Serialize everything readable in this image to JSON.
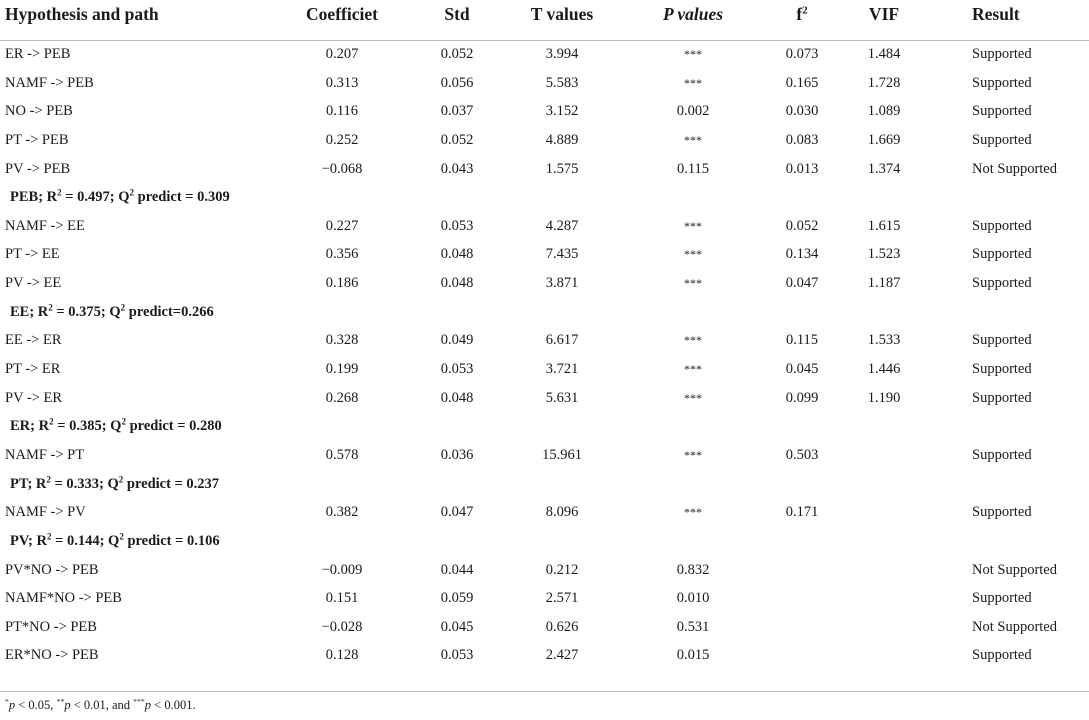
{
  "header": {
    "path": "Hypothesis and path",
    "coef": "Coefficiet",
    "std": "Std",
    "t": "T values",
    "p": "P values",
    "f2_base": "f",
    "f2_sup": "2",
    "vif": "VIF",
    "result": "Result"
  },
  "rows": [
    {
      "type": "data",
      "path": "ER -> PEB",
      "coef": "0.207",
      "std": "0.052",
      "t": "3.994",
      "p": "***",
      "f2": "0.073",
      "vif": "1.484",
      "result": "Supported"
    },
    {
      "type": "data",
      "path": "NAMF -> PEB",
      "coef": "0.313",
      "std": "0.056",
      "t": "5.583",
      "p": "***",
      "f2": "0.165",
      "vif": "1.728",
      "result": "Supported"
    },
    {
      "type": "data",
      "path": "NO -> PEB",
      "coef": "0.116",
      "std": "0.037",
      "t": "3.152",
      "p": "0.002",
      "f2": "0.030",
      "vif": "1.089",
      "result": "Supported"
    },
    {
      "type": "data",
      "path": "PT -> PEB",
      "coef": "0.252",
      "std": "0.052",
      "t": "4.889",
      "p": "***",
      "f2": "0.083",
      "vif": "1.669",
      "result": "Supported"
    },
    {
      "type": "data",
      "path": "PV -> PEB",
      "coef": "−0.068",
      "std": "0.043",
      "t": "1.575",
      "p": "0.115",
      "f2": "0.013",
      "vif": "1.374",
      "result": "Not Supported"
    },
    {
      "type": "section",
      "a": "PEB; R",
      "b": " = 0.497; Q",
      "c": " predict = 0.309"
    },
    {
      "type": "data",
      "path": "NAMF -> EE",
      "coef": "0.227",
      "std": "0.053",
      "t": "4.287",
      "p": "***",
      "f2": "0.052",
      "vif": "1.615",
      "result": "Supported"
    },
    {
      "type": "data",
      "path": "PT -> EE",
      "coef": "0.356",
      "std": "0.048",
      "t": "7.435",
      "p": "***",
      "f2": "0.134",
      "vif": "1.523",
      "result": "Supported"
    },
    {
      "type": "data",
      "path": "PV -> EE",
      "coef": "0.186",
      "std": "0.048",
      "t": "3.871",
      "p": "***",
      "f2": "0.047",
      "vif": "1.187",
      "result": "Supported"
    },
    {
      "type": "section",
      "a": "EE; R",
      "b": " = 0.375; Q",
      "c": " predict=0.266"
    },
    {
      "type": "data",
      "path": "EE -> ER",
      "coef": "0.328",
      "std": "0.049",
      "t": "6.617",
      "p": "***",
      "f2": "0.115",
      "vif": "1.533",
      "result": "Supported"
    },
    {
      "type": "data",
      "path": "PT -> ER",
      "coef": "0.199",
      "std": "0.053",
      "t": "3.721",
      "p": "***",
      "f2": "0.045",
      "vif": "1.446",
      "result": "Supported"
    },
    {
      "type": "data",
      "path": "PV -> ER",
      "coef": "0.268",
      "std": "0.048",
      "t": "5.631",
      "p": "***",
      "f2": "0.099",
      "vif": "1.190",
      "result": "Supported"
    },
    {
      "type": "section",
      "a": "ER; R",
      "b": " = 0.385; Q",
      "c": " predict = 0.280"
    },
    {
      "type": "data",
      "path": "NAMF -> PT",
      "coef": "0.578",
      "std": "0.036",
      "t": "15.961",
      "p": "***",
      "f2": "0.503",
      "vif": "",
      "result": "Supported"
    },
    {
      "type": "section",
      "a": "PT; R",
      "b": " = 0.333; Q",
      "c": " predict = 0.237"
    },
    {
      "type": "data",
      "path": "NAMF -> PV",
      "coef": "0.382",
      "std": "0.047",
      "t": "8.096",
      "p": "***",
      "f2": "0.171",
      "vif": "",
      "result": "Supported"
    },
    {
      "type": "section",
      "a": "PV; R",
      "b": " = 0.144; Q",
      "c": " predict = 0.106"
    },
    {
      "type": "data",
      "path": "PV*NO -> PEB",
      "coef": "−0.009",
      "std": "0.044",
      "t": "0.212",
      "p": "0.832",
      "f2": "",
      "vif": "",
      "result": "Not Supported"
    },
    {
      "type": "data",
      "path": "NAMF*NO -> PEB",
      "coef": "0.151",
      "std": "0.059",
      "t": "2.571",
      "p": "0.010",
      "f2": "",
      "vif": "",
      "result": "Supported"
    },
    {
      "type": "data",
      "path": "PT*NO -> PEB",
      "coef": "−0.028",
      "std": "0.045",
      "t": "0.626",
      "p": "0.531",
      "f2": "",
      "vif": "",
      "result": "Not Supported"
    },
    {
      "type": "data",
      "path": "ER*NO -> PEB",
      "coef": "0.128",
      "std": "0.053",
      "t": "2.427",
      "p": "0.015",
      "f2": "",
      "vif": "",
      "result": "Supported"
    }
  ],
  "footnote": {
    "s1": "*",
    "p1": "p",
    "t1": " < 0.05, ",
    "s2": "**",
    "p2": "p",
    "t2": " < 0.01, and ",
    "s3": "***",
    "p3": "p",
    "t3": " < 0.001."
  }
}
